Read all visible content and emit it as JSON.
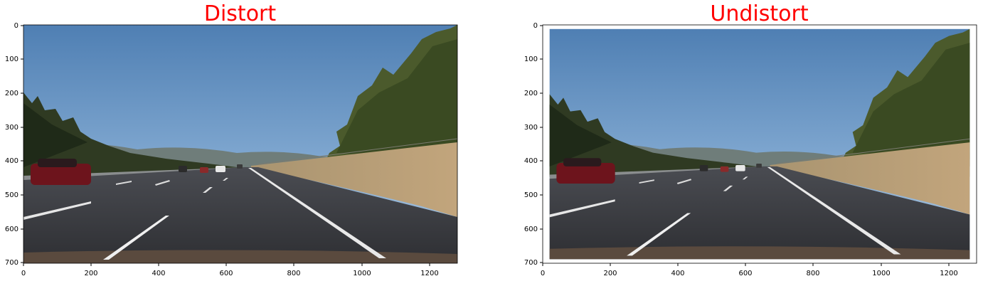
{
  "figure": {
    "title_color": "#ff0000",
    "panels": [
      {
        "title": "Distort",
        "x_ticks": [
          "0",
          "200",
          "400",
          "600",
          "800",
          "1000",
          "1200"
        ],
        "y_ticks": [
          "0",
          "100",
          "200",
          "300",
          "400",
          "500",
          "600",
          "700"
        ],
        "image_description": "dashcam highway road with lane lines, trees and cars"
      },
      {
        "title": "Undistort",
        "x_ticks": [
          "0",
          "200",
          "400",
          "600",
          "800",
          "1000",
          "1200"
        ],
        "y_ticks": [
          "0",
          "100",
          "200",
          "300",
          "400",
          "500",
          "600",
          "700"
        ],
        "image_description": "undistorted dashcam highway road with lane lines, trees and cars"
      }
    ]
  }
}
